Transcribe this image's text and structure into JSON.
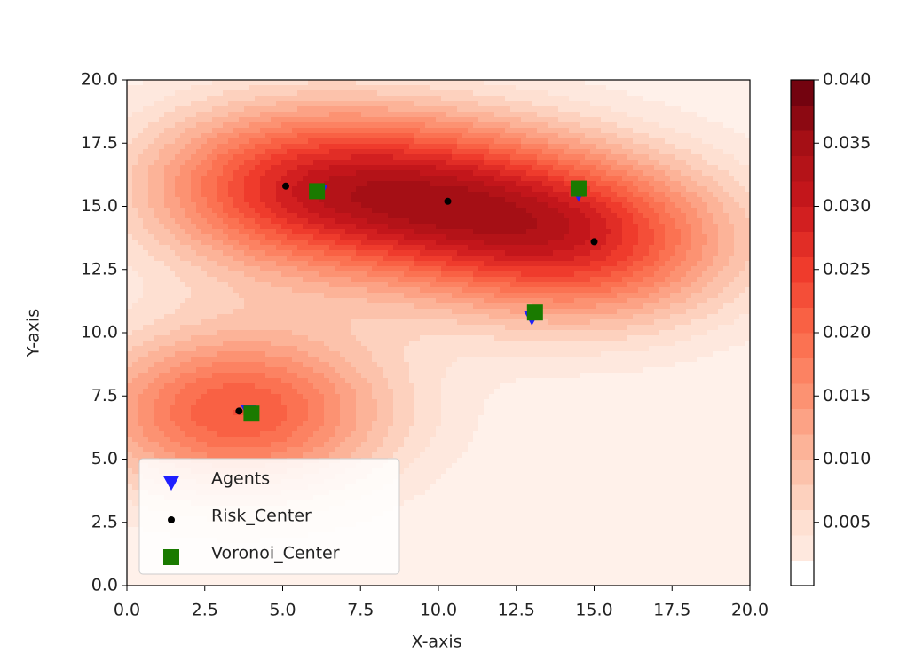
{
  "chart_data": {
    "type": "contour-scatter",
    "xlabel": "X-axis",
    "ylabel": "Y-axis",
    "xlim": [
      0,
      20
    ],
    "ylim": [
      0,
      20
    ],
    "xticks": [
      {
        "value": 0,
        "label": "0.0"
      },
      2.5,
      {
        "value": 5,
        "label": "5.0"
      },
      7.5,
      {
        "value": 10,
        "label": "10.0"
      },
      12.5,
      {
        "value": 15,
        "label": "15.0"
      },
      17.5,
      {
        "value": 20,
        "label": "20.0"
      }
    ],
    "yticks": [
      {
        "value": 0,
        "label": "0.0"
      },
      2.5,
      {
        "value": 5,
        "label": "5.0"
      },
      7.5,
      {
        "value": 10,
        "label": "10.0"
      },
      12.5,
      {
        "value": 15,
        "label": "15.0"
      },
      17.5,
      {
        "value": 20,
        "label": "20.0"
      }
    ],
    "colorbar": {
      "colormap": "Reds",
      "lim": [
        0,
        0.04
      ],
      "ticks": [
        0.005,
        {
          "value": 0.01,
          "label": "0.010"
        },
        0.015,
        {
          "value": 0.02,
          "label": "0.020"
        },
        0.025,
        {
          "value": 0.03,
          "label": "0.030"
        },
        0.035,
        {
          "value": 0.04,
          "label": "0.040"
        }
      ]
    },
    "legend": "lower left",
    "series": [
      {
        "name": "Agents",
        "marker": "triangle-down",
        "color": "#1f1fff",
        "x": [
          6.2,
          14.5,
          13.0,
          3.9
        ],
        "y": [
          15.6,
          15.5,
          10.6,
          6.9
        ]
      },
      {
        "name": "Risk_Center",
        "marker": "circle",
        "color": "#000000",
        "x": [
          5.1,
          10.3,
          15.0,
          3.6
        ],
        "y": [
          15.8,
          15.2,
          13.6,
          6.9
        ]
      },
      {
        "name": "Voronoi_Center",
        "marker": "square",
        "color": "#1a7a00",
        "x": [
          6.1,
          14.5,
          13.1,
          4.0
        ],
        "y": [
          15.6,
          15.7,
          10.8,
          6.8
        ]
      }
    ]
  }
}
